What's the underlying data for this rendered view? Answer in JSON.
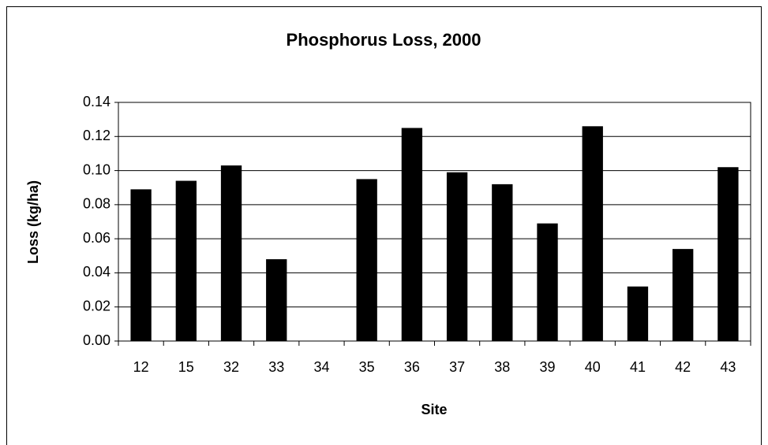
{
  "chart_data": {
    "type": "bar",
    "title": "Phosphorus Loss, 2000",
    "x_label": "Site",
    "y_label": "Loss (kg/ha)",
    "categories": [
      "12",
      "15",
      "32",
      "33",
      "34",
      "35",
      "36",
      "37",
      "38",
      "39",
      "40",
      "41",
      "42",
      "43"
    ],
    "values": [
      0.089,
      0.094,
      0.103,
      0.048,
      null,
      0.095,
      0.125,
      0.099,
      0.092,
      0.069,
      0.126,
      0.032,
      0.054,
      0.102
    ],
    "color": "#000000",
    "ylim": [
      0,
      0.14
    ],
    "yticks": [
      {
        "value": 0,
        "label": "0.00"
      },
      0.02,
      0.04,
      0.06,
      0.08,
      {
        "value": 0.1,
        "label": "0.10"
      },
      0.12,
      0.14
    ],
    "grid": true
  }
}
